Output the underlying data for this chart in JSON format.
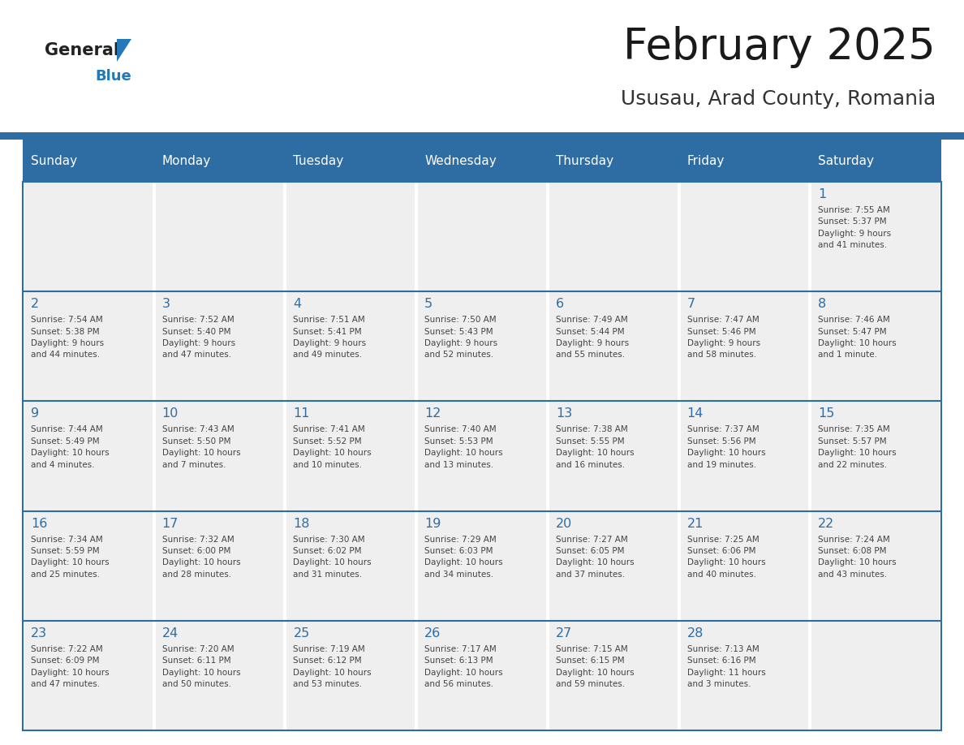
{
  "title": "February 2025",
  "subtitle": "Ususau, Arad County, Romania",
  "header_color": "#2E6DA4",
  "header_text_color": "#FFFFFF",
  "cell_bg_color": "#EFEFEF",
  "border_color": "#2E6DA4",
  "day_number_color": "#2E6DA4",
  "text_color": "#444444",
  "logo_text_color": "#222222",
  "logo_blue_color": "#2479B8",
  "days_of_week": [
    "Sunday",
    "Monday",
    "Tuesday",
    "Wednesday",
    "Thursday",
    "Friday",
    "Saturday"
  ],
  "weeks": [
    [
      {
        "day": "",
        "text": ""
      },
      {
        "day": "",
        "text": ""
      },
      {
        "day": "",
        "text": ""
      },
      {
        "day": "",
        "text": ""
      },
      {
        "day": "",
        "text": ""
      },
      {
        "day": "",
        "text": ""
      },
      {
        "day": "1",
        "text": "Sunrise: 7:55 AM\nSunset: 5:37 PM\nDaylight: 9 hours\nand 41 minutes."
      }
    ],
    [
      {
        "day": "2",
        "text": "Sunrise: 7:54 AM\nSunset: 5:38 PM\nDaylight: 9 hours\nand 44 minutes."
      },
      {
        "day": "3",
        "text": "Sunrise: 7:52 AM\nSunset: 5:40 PM\nDaylight: 9 hours\nand 47 minutes."
      },
      {
        "day": "4",
        "text": "Sunrise: 7:51 AM\nSunset: 5:41 PM\nDaylight: 9 hours\nand 49 minutes."
      },
      {
        "day": "5",
        "text": "Sunrise: 7:50 AM\nSunset: 5:43 PM\nDaylight: 9 hours\nand 52 minutes."
      },
      {
        "day": "6",
        "text": "Sunrise: 7:49 AM\nSunset: 5:44 PM\nDaylight: 9 hours\nand 55 minutes."
      },
      {
        "day": "7",
        "text": "Sunrise: 7:47 AM\nSunset: 5:46 PM\nDaylight: 9 hours\nand 58 minutes."
      },
      {
        "day": "8",
        "text": "Sunrise: 7:46 AM\nSunset: 5:47 PM\nDaylight: 10 hours\nand 1 minute."
      }
    ],
    [
      {
        "day": "9",
        "text": "Sunrise: 7:44 AM\nSunset: 5:49 PM\nDaylight: 10 hours\nand 4 minutes."
      },
      {
        "day": "10",
        "text": "Sunrise: 7:43 AM\nSunset: 5:50 PM\nDaylight: 10 hours\nand 7 minutes."
      },
      {
        "day": "11",
        "text": "Sunrise: 7:41 AM\nSunset: 5:52 PM\nDaylight: 10 hours\nand 10 minutes."
      },
      {
        "day": "12",
        "text": "Sunrise: 7:40 AM\nSunset: 5:53 PM\nDaylight: 10 hours\nand 13 minutes."
      },
      {
        "day": "13",
        "text": "Sunrise: 7:38 AM\nSunset: 5:55 PM\nDaylight: 10 hours\nand 16 minutes."
      },
      {
        "day": "14",
        "text": "Sunrise: 7:37 AM\nSunset: 5:56 PM\nDaylight: 10 hours\nand 19 minutes."
      },
      {
        "day": "15",
        "text": "Sunrise: 7:35 AM\nSunset: 5:57 PM\nDaylight: 10 hours\nand 22 minutes."
      }
    ],
    [
      {
        "day": "16",
        "text": "Sunrise: 7:34 AM\nSunset: 5:59 PM\nDaylight: 10 hours\nand 25 minutes."
      },
      {
        "day": "17",
        "text": "Sunrise: 7:32 AM\nSunset: 6:00 PM\nDaylight: 10 hours\nand 28 minutes."
      },
      {
        "day": "18",
        "text": "Sunrise: 7:30 AM\nSunset: 6:02 PM\nDaylight: 10 hours\nand 31 minutes."
      },
      {
        "day": "19",
        "text": "Sunrise: 7:29 AM\nSunset: 6:03 PM\nDaylight: 10 hours\nand 34 minutes."
      },
      {
        "day": "20",
        "text": "Sunrise: 7:27 AM\nSunset: 6:05 PM\nDaylight: 10 hours\nand 37 minutes."
      },
      {
        "day": "21",
        "text": "Sunrise: 7:25 AM\nSunset: 6:06 PM\nDaylight: 10 hours\nand 40 minutes."
      },
      {
        "day": "22",
        "text": "Sunrise: 7:24 AM\nSunset: 6:08 PM\nDaylight: 10 hours\nand 43 minutes."
      }
    ],
    [
      {
        "day": "23",
        "text": "Sunrise: 7:22 AM\nSunset: 6:09 PM\nDaylight: 10 hours\nand 47 minutes."
      },
      {
        "day": "24",
        "text": "Sunrise: 7:20 AM\nSunset: 6:11 PM\nDaylight: 10 hours\nand 50 minutes."
      },
      {
        "day": "25",
        "text": "Sunrise: 7:19 AM\nSunset: 6:12 PM\nDaylight: 10 hours\nand 53 minutes."
      },
      {
        "day": "26",
        "text": "Sunrise: 7:17 AM\nSunset: 6:13 PM\nDaylight: 10 hours\nand 56 minutes."
      },
      {
        "day": "27",
        "text": "Sunrise: 7:15 AM\nSunset: 6:15 PM\nDaylight: 10 hours\nand 59 minutes."
      },
      {
        "day": "28",
        "text": "Sunrise: 7:13 AM\nSunset: 6:16 PM\nDaylight: 11 hours\nand 3 minutes."
      },
      {
        "day": "",
        "text": ""
      }
    ]
  ]
}
